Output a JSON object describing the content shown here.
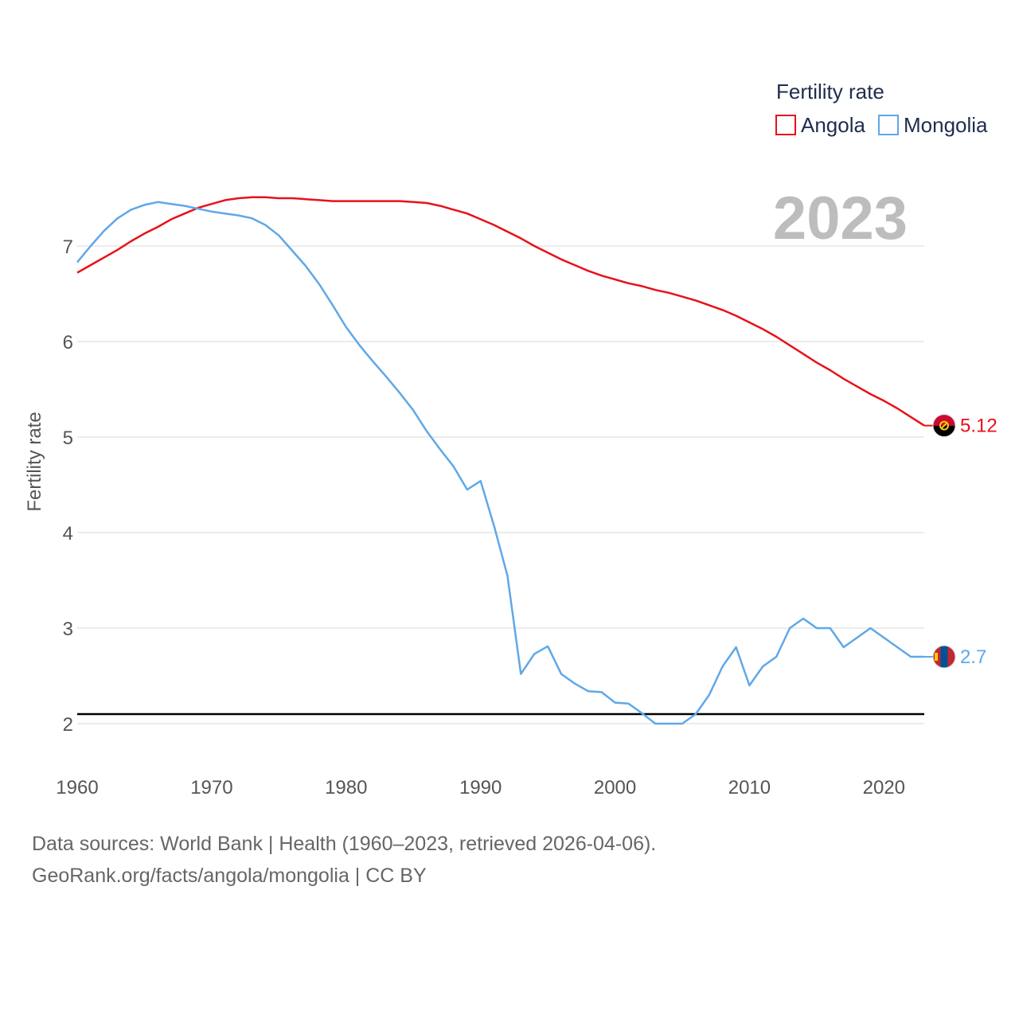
{
  "chart_data": {
    "type": "line",
    "title": "Fertility rate",
    "ylabel": "Fertility rate",
    "xlabel": "",
    "year_display": "2023",
    "xlim": [
      1960,
      2023
    ],
    "ylim": [
      1.6,
      8.0
    ],
    "x_ticks": [
      1960,
      1970,
      1980,
      1990,
      2000,
      2010,
      2020
    ],
    "y_ticks": [
      2,
      3,
      4,
      5,
      6,
      7
    ],
    "reference_line": 2.1,
    "series": [
      {
        "name": "Angola",
        "color": "#e8111a",
        "end_label": "5.12",
        "x": [
          1960,
          1961,
          1962,
          1963,
          1964,
          1965,
          1966,
          1967,
          1968,
          1969,
          1970,
          1971,
          1972,
          1973,
          1974,
          1975,
          1976,
          1977,
          1978,
          1979,
          1980,
          1981,
          1982,
          1983,
          1984,
          1985,
          1986,
          1987,
          1988,
          1989,
          1990,
          1991,
          1992,
          1993,
          1994,
          1995,
          1996,
          1997,
          1998,
          1999,
          2000,
          2001,
          2002,
          2003,
          2004,
          2005,
          2006,
          2007,
          2008,
          2009,
          2010,
          2011,
          2012,
          2013,
          2014,
          2015,
          2016,
          2017,
          2018,
          2019,
          2020,
          2021,
          2022,
          2023
        ],
        "values": [
          6.72,
          6.8,
          6.88,
          6.96,
          7.05,
          7.13,
          7.2,
          7.28,
          7.34,
          7.4,
          7.44,
          7.48,
          7.5,
          7.51,
          7.51,
          7.5,
          7.5,
          7.49,
          7.48,
          7.47,
          7.47,
          7.47,
          7.47,
          7.47,
          7.47,
          7.46,
          7.45,
          7.42,
          7.38,
          7.34,
          7.28,
          7.22,
          7.15,
          7.08,
          7.0,
          6.93,
          6.86,
          6.8,
          6.74,
          6.69,
          6.65,
          6.61,
          6.58,
          6.54,
          6.51,
          6.47,
          6.43,
          6.38,
          6.33,
          6.27,
          6.2,
          6.13,
          6.05,
          5.96,
          5.87,
          5.78,
          5.7,
          5.61,
          5.53,
          5.45,
          5.38,
          5.3,
          5.21,
          5.12
        ]
      },
      {
        "name": "Mongolia",
        "color": "#5fa8e8",
        "end_label": "2.7",
        "x": [
          1960,
          1961,
          1962,
          1963,
          1964,
          1965,
          1966,
          1967,
          1968,
          1969,
          1970,
          1971,
          1972,
          1973,
          1974,
          1975,
          1976,
          1977,
          1978,
          1979,
          1980,
          1981,
          1982,
          1983,
          1984,
          1985,
          1986,
          1987,
          1988,
          1989,
          1990,
          1991,
          1992,
          1993,
          1994,
          1995,
          1996,
          1997,
          1998,
          1999,
          2000,
          2001,
          2002,
          2003,
          2004,
          2005,
          2006,
          2007,
          2008,
          2009,
          2010,
          2011,
          2012,
          2013,
          2014,
          2015,
          2016,
          2017,
          2018,
          2019,
          2020,
          2021,
          2022,
          2023
        ],
        "values": [
          6.83,
          7.0,
          7.16,
          7.29,
          7.38,
          7.43,
          7.46,
          7.44,
          7.42,
          7.39,
          7.36,
          7.34,
          7.32,
          7.29,
          7.22,
          7.11,
          6.95,
          6.79,
          6.6,
          6.38,
          6.15,
          5.96,
          5.79,
          5.63,
          5.46,
          5.28,
          5.06,
          4.87,
          4.69,
          4.45,
          4.54,
          4.07,
          3.55,
          2.52,
          2.73,
          2.81,
          2.52,
          2.42,
          2.34,
          2.33,
          2.22,
          2.21,
          2.11,
          2.0,
          2.0,
          2.0,
          2.1,
          2.3,
          2.6,
          2.8,
          2.4,
          2.6,
          2.7,
          3.0,
          3.1,
          3.0,
          3.0,
          2.8,
          2.9,
          3.0,
          2.9,
          2.8,
          2.7,
          2.7
        ]
      }
    ]
  },
  "legend": {
    "title": "Fertility rate",
    "items": [
      "Angola",
      "Mongolia"
    ]
  },
  "footer": {
    "line1": "Data sources: World Bank | Health (1960–2023, retrieved 2026-04-06).",
    "line2": "GeoRank.org/facts/angola/mongolia | CC BY"
  }
}
